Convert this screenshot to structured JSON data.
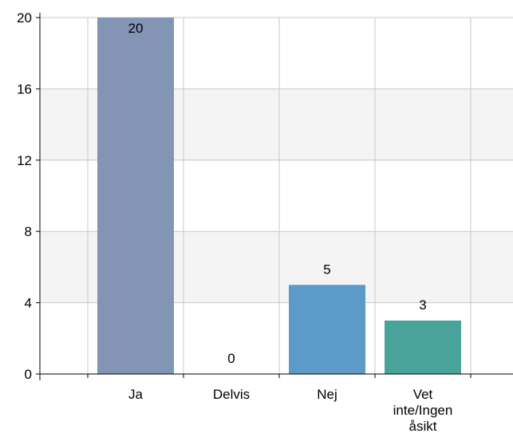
{
  "chart_data": {
    "type": "bar",
    "title": "",
    "xlabel": "",
    "ylabel": "",
    "categories": [
      "Ja",
      "Delvis",
      "Nej",
      "Vet inte/Ingen åsikt"
    ],
    "category_lines": [
      [
        "Ja"
      ],
      [
        "Delvis"
      ],
      [
        "Nej"
      ],
      [
        "Vet",
        "inte/Ingen",
        "åsikt"
      ]
    ],
    "values": [
      20,
      0,
      5,
      3
    ],
    "value_labels": [
      "20",
      "0",
      "5",
      "3"
    ],
    "bar_colors": [
      "#8395b5",
      "#8395b5",
      "#5b9ac9",
      "#4aa39a"
    ],
    "ylim": [
      0,
      20
    ],
    "yticks": [
      0,
      4,
      8,
      12,
      16,
      20
    ],
    "ytick_labels": [
      "0",
      "4",
      "8",
      "12",
      "16",
      "20"
    ],
    "grid": true,
    "band_color": "#f4f4f4",
    "grid_color": "#c8c8c8",
    "axis_color": "#000000"
  }
}
